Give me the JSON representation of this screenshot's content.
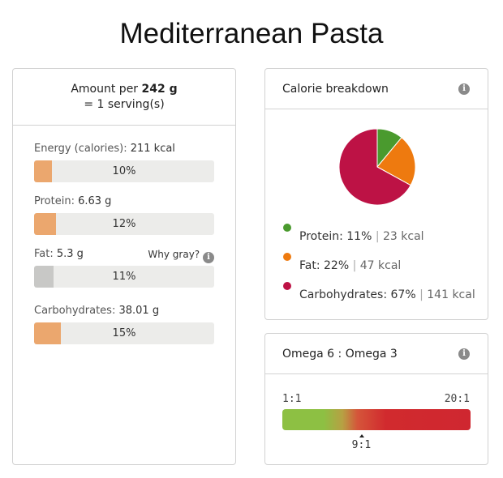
{
  "title": "Mediterranean Pasta",
  "serving": {
    "prefix": "Amount per",
    "amount": "242 g",
    "line2": "= 1 serving(s)"
  },
  "nutrients": [
    {
      "label": "Energy (calories):",
      "value": "211 kcal",
      "percent_text": "10%",
      "percent": 10,
      "bar": "orange"
    },
    {
      "label": "Protein:",
      "value": "6.63 g",
      "percent_text": "12%",
      "percent": 12,
      "bar": "orange"
    },
    {
      "label": "Fat:",
      "value": "5.3 g",
      "percent_text": "11%",
      "percent": 11,
      "bar": "gray"
    },
    {
      "label": "Carbohydrates:",
      "value": "38.01 g",
      "percent_text": "15%",
      "percent": 15,
      "bar": "orange"
    }
  ],
  "why_gray": "Why gray?",
  "colors": {
    "bar_fill": "#eba76e",
    "bar_gray": "#c8c8c6",
    "bar_track": "#ececea"
  },
  "calorie_card": {
    "title": "Calorie breakdown",
    "info_icon": "info-icon"
  },
  "omega_card": {
    "title": "Omega 6 : Omega 3",
    "info_icon": "info-icon",
    "scale_min_label": "1:1",
    "scale_max_label": "20:1",
    "value_label": "9:1",
    "value": 9,
    "scale_min": 1,
    "scale_max": 20
  },
  "chart_data": {
    "type": "pie",
    "title": "Calorie breakdown",
    "slices": [
      {
        "name": "Protein",
        "percent": 11,
        "percent_text": "11%",
        "kcal_text": "23 kcal",
        "color": "#4a9a2e"
      },
      {
        "name": "Fat",
        "percent": 22,
        "percent_text": "22%",
        "kcal_text": "47 kcal",
        "color": "#ee7a0f"
      },
      {
        "name": "Carbohydrates",
        "percent": 67,
        "percent_text": "67%",
        "kcal_text": "141 kcal",
        "color": "#bd1245"
      }
    ]
  }
}
